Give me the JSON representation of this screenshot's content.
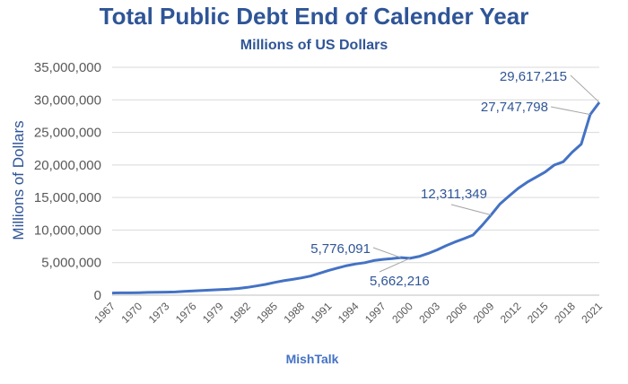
{
  "chart_data": {
    "type": "line",
    "title": "Total Public Debt End of Calender Year",
    "subtitle": "Millions of US Dollars",
    "xlabel": "MishTalk",
    "ylabel": "Millions of Dollars",
    "ylim": [
      0,
      35000000
    ],
    "y_ticks": [
      0,
      5000000,
      10000000,
      15000000,
      20000000,
      25000000,
      30000000,
      35000000
    ],
    "y_tick_labels": [
      "0",
      "5,000,000",
      "10,000,000",
      "15,000,000",
      "20,000,000",
      "25,000,000",
      "30,000,000",
      "35,000,000"
    ],
    "x_tick_labels": [
      "1967",
      "1970",
      "1973",
      "1976",
      "1979",
      "1982",
      "1985",
      "1988",
      "1991",
      "1994",
      "1997",
      "2000",
      "2003",
      "2006",
      "2009",
      "2012",
      "2015",
      "2018",
      "2021"
    ],
    "grid": "horizontal",
    "line_color": "#4472C4",
    "series": [
      {
        "x": [
          1967,
          1968,
          1969,
          1970,
          1971,
          1972,
          1973,
          1974,
          1975,
          1976,
          1977,
          1978,
          1979,
          1980,
          1981,
          1982,
          1983,
          1984,
          1985,
          1986,
          1987,
          1988,
          1989,
          1990,
          1991,
          1992,
          1993,
          1994,
          1995,
          1996,
          1997,
          1998,
          1999,
          2000,
          2001,
          2002,
          2003,
          2004,
          2005,
          2006,
          2007,
          2008,
          2009,
          2010,
          2011,
          2012,
          2013,
          2014,
          2015,
          2016,
          2017,
          2018,
          2019,
          2020,
          2021
        ],
        "values": [
          330000,
          355000,
          365000,
          390000,
          425000,
          455000,
          470000,
          490000,
          580000,
          650000,
          720000,
          790000,
          850000,
          930000,
          1030000,
          1200000,
          1420000,
          1660000,
          1950000,
          2220000,
          2420000,
          2660000,
          2940000,
          3360000,
          3800000,
          4180000,
          4540000,
          4800000,
          4990000,
          5320000,
          5500000,
          5610000,
          5776091,
          5662216,
          5940000,
          6400000,
          6950000,
          7590000,
          8170000,
          8680000,
          9230000,
          10700000,
          12311349,
          14030000,
          15220000,
          16400000,
          17350000,
          18140000,
          18920000,
          19980000,
          20490000,
          21970000,
          23200000,
          27747798,
          29617215
        ]
      }
    ],
    "annotations": [
      {
        "label": "29,617,215",
        "x": 2021,
        "value": 29617215
      },
      {
        "label": "27,747,798",
        "x": 2020,
        "value": 27747798
      },
      {
        "label": "12,311,349",
        "x": 2009,
        "value": 12311349
      },
      {
        "label": "5,776,091",
        "x": 1999,
        "value": 5776091
      },
      {
        "label": "5,662,216",
        "x": 2000,
        "value": 5662216
      }
    ]
  }
}
